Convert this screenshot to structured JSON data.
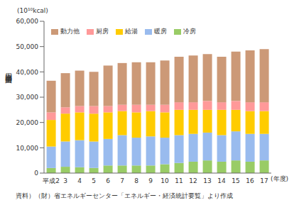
{
  "chart_data": {
    "type": "bar",
    "stacked": true,
    "unit_label": "(10¹⁰kcal)",
    "y_label": "用途別消費量",
    "x_label": "(年度)",
    "source": "資料）（財）省エネルギーセンター「エネルギー・経済統計要覧」より作成",
    "categories": [
      "平成2",
      "3",
      "4",
      "5",
      "6",
      "7",
      "8",
      "9",
      "10",
      "11",
      "12",
      "13",
      "14",
      "15",
      "16",
      "17"
    ],
    "ylim": [
      0,
      60000
    ],
    "yticks": [
      0,
      {
        "value": 10000,
        "label": "10,000"
      },
      {
        "value": 20000,
        "label": "20,000"
      },
      {
        "value": 30000,
        "label": "30,000"
      },
      {
        "value": 40000,
        "label": "40,000"
      },
      {
        "value": 50000,
        "label": "50,000"
      },
      {
        "value": 60000,
        "label": "60,000"
      }
    ],
    "grid": false,
    "legend": "top",
    "series": [
      {
        "name": "冷房",
        "color": "#99cc66",
        "values": [
          2000,
          2500,
          2300,
          2000,
          3000,
          3000,
          3000,
          3000,
          3500,
          4000,
          4500,
          5000,
          4500,
          5000,
          4500,
          5000
        ]
      },
      {
        "name": "暖房",
        "color": "#99bbee",
        "values": [
          8500,
          10000,
          10700,
          10500,
          10500,
          12000,
          11000,
          11500,
          10500,
          11000,
          11000,
          11000,
          10500,
          11500,
          11000,
          10500
        ]
      },
      {
        "name": "給湯",
        "color": "#ffcc00",
        "values": [
          10500,
          11000,
          11000,
          11000,
          10500,
          9500,
          10000,
          10000,
          10000,
          10000,
          9500,
          9000,
          10000,
          8500,
          9000,
          9000
        ]
      },
      {
        "name": "厨房",
        "color": "#ff9999",
        "values": [
          3000,
          2500,
          2500,
          3000,
          2500,
          2500,
          3000,
          2500,
          3000,
          3000,
          3000,
          3500,
          3000,
          3500,
          3500,
          3500
        ]
      },
      {
        "name": "動力他",
        "color": "#cc9977",
        "values": [
          12500,
          13500,
          14000,
          13500,
          16000,
          16500,
          16800,
          16800,
          17500,
          18000,
          18500,
          18500,
          18000,
          19500,
          20500,
          21000
        ]
      }
    ]
  }
}
